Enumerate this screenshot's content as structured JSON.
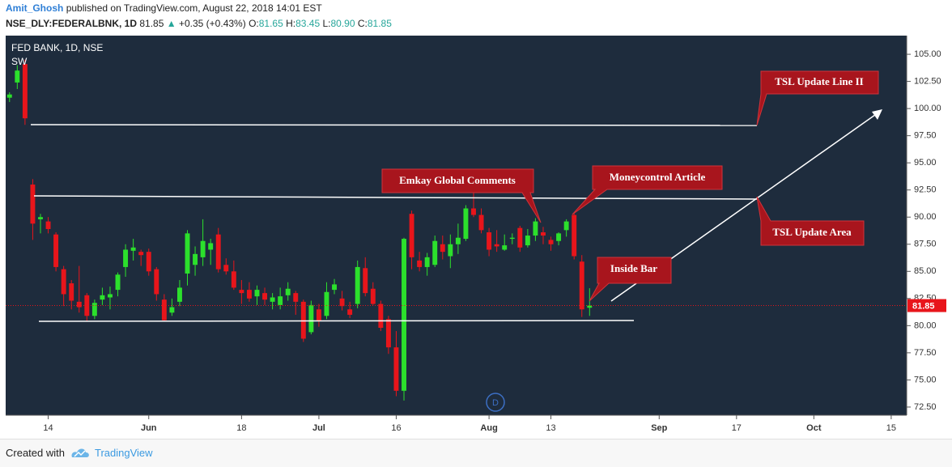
{
  "header": {
    "author": "Amit_Ghosh",
    "published": "published on TradingView.com, August 22, 2018 14:01 EST",
    "symbol": "NSE_DLY:FEDERALBNK, 1D",
    "last": "81.85",
    "arrow": "▲",
    "change": "+0.35 (+0.43%)",
    "open_label": "O:",
    "open": "81.65",
    "high_label": "H:",
    "high": "83.45",
    "low_label": "L:",
    "low": "80.90",
    "close_label": "C:",
    "close": "81.85"
  },
  "chart_data": {
    "type": "candlestick",
    "title": "FED BANK, 1D, NSE",
    "indicator": "SW",
    "up_color": "#2ce02c",
    "down_color": "#e8151b",
    "open": [
      101.0,
      102.4,
      104.1,
      93.0,
      89.8,
      89.6,
      88.4,
      85.2,
      83.9,
      82.2,
      82.8,
      80.9,
      82.4,
      82.6,
      83.3,
      85.4,
      86.9,
      86.8,
      86.8,
      85.2,
      82.4,
      81.2,
      82.2,
      84.8,
      85.6,
      86.3,
      87.0,
      88.4,
      85.6,
      85.0,
      83.3,
      83.3,
      82.7,
      83.0,
      82.2,
      81.9,
      82.8,
      83.0,
      82.2,
      79.4,
      81.5,
      80.9,
      83.3,
      82.5,
      81.5,
      82.0,
      85.3,
      83.4,
      82.0,
      80.6,
      78.0,
      74.0,
      90.3,
      86.0,
      85.4,
      85.6,
      87.5,
      86.4,
      87.5,
      88.0,
      90.8,
      90.2,
      88.6,
      87.5,
      87.0,
      88.0,
      89.0,
      87.4,
      88.3,
      88.6,
      87.9,
      87.8,
      88.8,
      90.2,
      85.9,
      81.65
    ],
    "high": [
      101.5,
      104.0,
      104.5,
      93.5,
      90.3,
      90.0,
      88.6,
      85.5,
      84.2,
      85.5,
      83.0,
      82.4,
      83.5,
      83.6,
      84.9,
      87.5,
      88.0,
      87.0,
      87.1,
      85.4,
      82.9,
      82.5,
      84.2,
      88.8,
      87.3,
      89.8,
      88.0,
      89.0,
      86.2,
      86.0,
      84.2,
      84.0,
      83.7,
      83.5,
      83.0,
      83.5,
      84.0,
      83.2,
      82.4,
      82.3,
      82.0,
      84.0,
      84.3,
      83.2,
      82.2,
      86.0,
      86.3,
      84.0,
      82.3,
      80.9,
      79.5,
      88.1,
      90.6,
      86.8,
      86.7,
      88.3,
      88.3,
      88.4,
      89.4,
      91.1,
      92.3,
      90.8,
      89.0,
      88.8,
      88.4,
      88.5,
      89.2,
      88.9,
      89.9,
      89.1,
      88.2,
      88.6,
      89.8,
      90.4,
      86.5,
      83.45
    ],
    "low": [
      100.6,
      101.8,
      98.5,
      87.9,
      88.5,
      88.5,
      85.0,
      81.8,
      81.5,
      81.2,
      80.4,
      80.6,
      81.9,
      81.5,
      82.7,
      84.5,
      86.0,
      85.5,
      84.6,
      82.3,
      80.4,
      80.9,
      81.8,
      83.7,
      84.6,
      85.5,
      85.6,
      84.9,
      84.7,
      83.3,
      82.0,
      82.2,
      81.9,
      81.9,
      81.5,
      81.5,
      82.3,
      81.0,
      78.5,
      79.2,
      79.9,
      80.6,
      82.9,
      81.4,
      80.7,
      81.6,
      82.7,
      81.9,
      79.5,
      77.4,
      73.5,
      73.1,
      85.2,
      85.0,
      84.6,
      85.4,
      86.1,
      85.3,
      86.6,
      87.8,
      90.0,
      88.5,
      86.4,
      86.8,
      86.9,
      87.5,
      86.8,
      87.2,
      87.8,
      87.5,
      86.9,
      87.4,
      88.2,
      86.1,
      80.8,
      80.9
    ],
    "close": [
      101.3,
      103.5,
      99.1,
      89.4,
      90.0,
      88.9,
      85.4,
      82.9,
      82.3,
      81.7,
      80.9,
      82.1,
      82.8,
      82.9,
      84.7,
      87.0,
      87.2,
      86.5,
      85.0,
      82.9,
      80.5,
      81.7,
      83.5,
      88.5,
      86.6,
      87.8,
      87.6,
      85.2,
      85.0,
      83.5,
      83.0,
      82.5,
      83.3,
      82.4,
      82.6,
      82.7,
      83.4,
      82.2,
      78.8,
      81.9,
      80.4,
      83.1,
      83.8,
      81.8,
      81.0,
      85.4,
      83.0,
      82.0,
      79.8,
      78.0,
      74.0,
      88.0,
      86.3,
      85.4,
      86.3,
      87.8,
      86.8,
      87.5,
      88.1,
      90.8,
      90.2,
      88.8,
      87.0,
      87.3,
      87.4,
      88.1,
      87.2,
      88.3,
      89.6,
      88.3,
      87.5,
      88.5,
      89.6,
      86.4,
      81.5,
      81.85
    ],
    "last_price": 81.85,
    "ylim": [
      71.75,
      106.72
    ],
    "yticks": [
      {
        "value": 72.5,
        "label": "72.50"
      },
      {
        "value": 75,
        "label": "75.00"
      },
      {
        "value": 77.5,
        "label": "77.50"
      },
      {
        "value": 80,
        "label": "80.00"
      },
      {
        "value": 82.5,
        "label": "82.50"
      },
      {
        "value": 85,
        "label": "85.00"
      },
      {
        "value": 87.5,
        "label": "87.50"
      },
      {
        "value": 90,
        "label": "90.00"
      },
      {
        "value": 92.5,
        "label": "92.50"
      },
      {
        "value": 95,
        "label": "95.00"
      },
      {
        "value": 97.5,
        "label": "97.50"
      },
      {
        "value": 100,
        "label": "100.00"
      },
      {
        "value": 102.5,
        "label": "102.50"
      },
      {
        "value": 105,
        "label": "105.00"
      }
    ],
    "xlim": [
      -0.5,
      116
    ],
    "xticks": [
      {
        "value": 5,
        "label": "14"
      },
      {
        "value": 18,
        "label": "Jun"
      },
      {
        "value": 30,
        "label": "18"
      },
      {
        "value": 40,
        "label": "Jul"
      },
      {
        "value": 50,
        "label": "16"
      },
      {
        "value": 62,
        "label": "Aug"
      },
      {
        "value": 70,
        "label": "13"
      },
      {
        "value": 84,
        "label": "Sep"
      },
      {
        "value": 94,
        "label": "17"
      },
      {
        "value": 104,
        "label": "Oct"
      },
      {
        "value": 114,
        "label": "15"
      }
    ],
    "event_marker": "D",
    "annotations": [
      "TSL Update Line II",
      "TSL Update Area",
      "Emkay Global Comments",
      "Moneycontrol Article",
      "Inside Bar"
    ]
  },
  "footer": {
    "created": "Created with",
    "brand": "TradingView"
  }
}
